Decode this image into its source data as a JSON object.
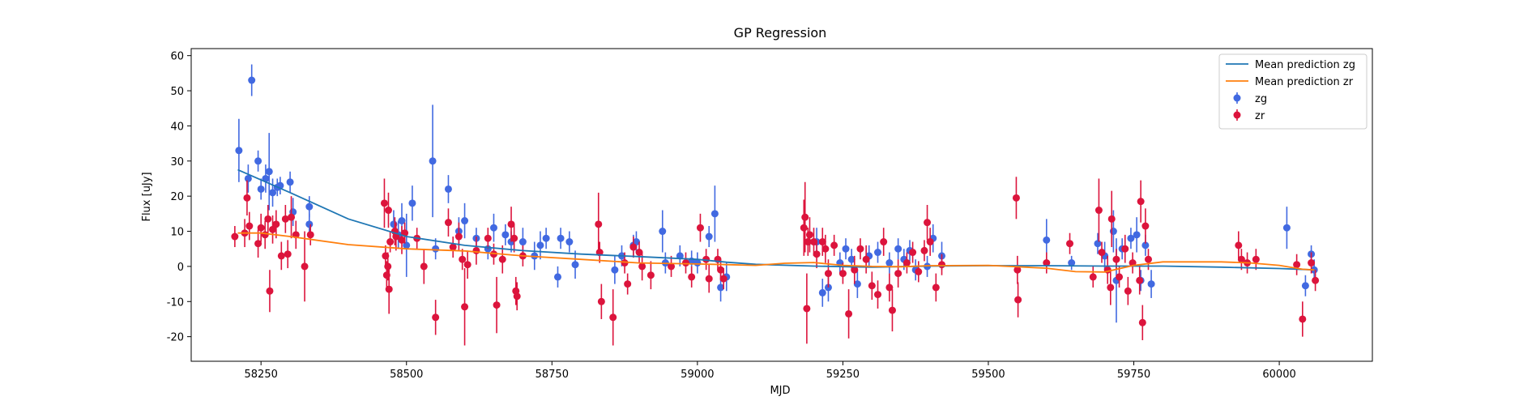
{
  "chart_data": {
    "type": "scatter",
    "title": "GP Regression",
    "xlabel": "MJD",
    "ylabel": "Flux [uJy]",
    "xlim": [
      58130,
      60160
    ],
    "ylim": [
      -27,
      62
    ],
    "xticks": [
      58250,
      58500,
      58750,
      59000,
      59250,
      59500,
      59750,
      60000
    ],
    "yticks": [
      -20,
      -10,
      0,
      10,
      20,
      30,
      40,
      50,
      60
    ],
    "grid": false,
    "legend_position": "top-right",
    "series": [
      {
        "name": "Mean prediction zg",
        "kind": "line",
        "color": "#1f77b4",
        "points": [
          [
            58210,
            27.5
          ],
          [
            58300,
            21
          ],
          [
            58400,
            13.5
          ],
          [
            58500,
            8.5
          ],
          [
            58600,
            6
          ],
          [
            58700,
            4.5
          ],
          [
            58800,
            3.5
          ],
          [
            58900,
            2.8
          ],
          [
            59000,
            2
          ],
          [
            59050,
            1.2
          ],
          [
            59100,
            0.6
          ],
          [
            59200,
            0.1
          ],
          [
            59300,
            -0.2
          ],
          [
            59400,
            0.1
          ],
          [
            59500,
            0.2
          ],
          [
            59600,
            0.2
          ],
          [
            59700,
            0.1
          ],
          [
            59800,
            0.1
          ],
          [
            59900,
            -0.2
          ],
          [
            60000,
            -0.6
          ],
          [
            60060,
            -1
          ]
        ]
      },
      {
        "name": "Mean prediction zr",
        "kind": "line",
        "color": "#ff7f0e",
        "points": [
          [
            58210,
            9.5
          ],
          [
            58250,
            9.5
          ],
          [
            58300,
            8.5
          ],
          [
            58400,
            6.2
          ],
          [
            58500,
            5
          ],
          [
            58600,
            4.4
          ],
          [
            58700,
            3
          ],
          [
            58800,
            2
          ],
          [
            58900,
            1
          ],
          [
            59000,
            0.7
          ],
          [
            59050,
            0.5
          ],
          [
            59100,
            0.3
          ],
          [
            59150,
            0.9
          ],
          [
            59200,
            1.1
          ],
          [
            59250,
            0.3
          ],
          [
            59300,
            0
          ],
          [
            59350,
            -0.1
          ],
          [
            59400,
            0.2
          ],
          [
            59500,
            0.3
          ],
          [
            59600,
            -0.5
          ],
          [
            59650,
            -1.5
          ],
          [
            59700,
            -1.6
          ],
          [
            59750,
            0.3
          ],
          [
            59800,
            1.3
          ],
          [
            59900,
            1.3
          ],
          [
            59950,
            1
          ],
          [
            60000,
            0.3
          ],
          [
            60040,
            -0.8
          ],
          [
            60060,
            -1
          ]
        ]
      },
      {
        "name": "zg",
        "kind": "errorbar",
        "color": "#4169e1",
        "points": [
          [
            58212,
            33,
            9
          ],
          [
            58228,
            25,
            4
          ],
          [
            58234,
            53,
            4.5
          ],
          [
            58245,
            30,
            3
          ],
          [
            58250,
            22,
            3
          ],
          [
            58258,
            25,
            4
          ],
          [
            58264,
            27,
            11
          ],
          [
            58270,
            21,
            4
          ],
          [
            58278,
            22.5,
            2.5
          ],
          [
            58283,
            23,
            2.5
          ],
          [
            58300,
            24,
            3
          ],
          [
            58305,
            15.5,
            4
          ],
          [
            58333,
            17,
            3
          ],
          [
            58333,
            12,
            3
          ],
          [
            58478,
            12,
            4
          ],
          [
            58486,
            9,
            4
          ],
          [
            58492,
            13,
            5
          ],
          [
            58500,
            6,
            9
          ],
          [
            58510,
            18,
            5
          ],
          [
            58545,
            30,
            16
          ],
          [
            58550,
            5,
            3
          ],
          [
            58572,
            22,
            4
          ],
          [
            58590,
            10,
            4
          ],
          [
            58600,
            13,
            5
          ],
          [
            58620,
            8,
            3
          ],
          [
            58640,
            5,
            3
          ],
          [
            58650,
            11,
            4
          ],
          [
            58670,
            9,
            3
          ],
          [
            58680,
            7,
            3
          ],
          [
            58700,
            7,
            4
          ],
          [
            58720,
            3,
            4
          ],
          [
            58730,
            6,
            4
          ],
          [
            58740,
            8,
            3
          ],
          [
            58760,
            -3,
            3
          ],
          [
            58765,
            8,
            3
          ],
          [
            58780,
            7,
            3
          ],
          [
            58790,
            0.5,
            4
          ],
          [
            58858,
            -1,
            4
          ],
          [
            58870,
            3,
            3
          ],
          [
            58890,
            6,
            3
          ],
          [
            58895,
            7,
            3
          ],
          [
            58940,
            10,
            6
          ],
          [
            58945,
            1,
            3
          ],
          [
            58970,
            3,
            3
          ],
          [
            58990,
            1.5,
            3
          ],
          [
            59000,
            1,
            3
          ],
          [
            59020,
            8.5,
            3
          ],
          [
            59030,
            15,
            8
          ],
          [
            59040,
            -6,
            4
          ],
          [
            59050,
            -3,
            4
          ],
          [
            59205,
            7,
            4
          ],
          [
            59215,
            -7.5,
            4
          ],
          [
            59225,
            -6,
            4
          ],
          [
            59245,
            1,
            3
          ],
          [
            59255,
            5,
            3
          ],
          [
            59265,
            2,
            3
          ],
          [
            59275,
            -5,
            4
          ],
          [
            59295,
            3,
            3
          ],
          [
            59310,
            4,
            3
          ],
          [
            59330,
            1,
            3
          ],
          [
            59345,
            5,
            3
          ],
          [
            59355,
            2,
            3
          ],
          [
            59365,
            4.5,
            3
          ],
          [
            59375,
            -1,
            3
          ],
          [
            59395,
            0,
            3
          ],
          [
            59405,
            8,
            4
          ],
          [
            59420,
            3,
            4
          ],
          [
            59600,
            7.5,
            6
          ],
          [
            59643,
            1,
            2
          ],
          [
            59688,
            6.5,
            3
          ],
          [
            59700,
            3,
            4
          ],
          [
            59715,
            10,
            6
          ],
          [
            59720,
            -4,
            12
          ],
          [
            59730,
            5,
            3
          ],
          [
            59745,
            8,
            3
          ],
          [
            59755,
            9,
            5
          ],
          [
            59762,
            -4,
            3
          ],
          [
            59770,
            6,
            3
          ],
          [
            59780,
            -5,
            4
          ],
          [
            60013,
            11,
            6
          ],
          [
            60045,
            -5.5,
            3
          ],
          [
            60055,
            3.5,
            2.5
          ],
          [
            60060,
            -1,
            3
          ]
        ]
      },
      {
        "name": "zr",
        "kind": "errorbar",
        "color": "#dc143c",
        "points": [
          [
            58205,
            8.5,
            3
          ],
          [
            58222,
            9.5,
            4
          ],
          [
            58226,
            19.5,
            5
          ],
          [
            58230,
            11.5,
            4
          ],
          [
            58245,
            6.5,
            4
          ],
          [
            58250,
            11,
            4
          ],
          [
            58257,
            9,
            4
          ],
          [
            58262,
            13.5,
            4
          ],
          [
            58265,
            -7,
            6
          ],
          [
            58270,
            10.5,
            4
          ],
          [
            58276,
            12,
            4
          ],
          [
            58285,
            3,
            4
          ],
          [
            58292,
            13.5,
            4
          ],
          [
            58296,
            3.5,
            4
          ],
          [
            58302,
            14,
            6
          ],
          [
            58310,
            9,
            4
          ],
          [
            58325,
            0,
            10
          ],
          [
            58335,
            9,
            3
          ],
          [
            58462,
            18,
            7
          ],
          [
            58464,
            3,
            3
          ],
          [
            58466,
            -2.5,
            4
          ],
          [
            58468,
            0,
            4
          ],
          [
            58469,
            16,
            5
          ],
          [
            58470,
            -6.5,
            7
          ],
          [
            58472,
            7,
            3
          ],
          [
            58480,
            10,
            4
          ],
          [
            58482,
            8.5,
            4
          ],
          [
            58492,
            7.5,
            4
          ],
          [
            58497,
            9.5,
            3
          ],
          [
            58518,
            8,
            3
          ],
          [
            58530,
            0,
            5
          ],
          [
            58550,
            -14.5,
            5
          ],
          [
            58572,
            12.5,
            4
          ],
          [
            58580,
            5.5,
            3
          ],
          [
            58590,
            8.5,
            4
          ],
          [
            58596,
            2,
            3
          ],
          [
            58600,
            -11.5,
            11
          ],
          [
            58605,
            0.5,
            4
          ],
          [
            58620,
            4.5,
            4
          ],
          [
            58640,
            8,
            3
          ],
          [
            58650,
            3.5,
            3
          ],
          [
            58655,
            -11,
            8
          ],
          [
            58665,
            2,
            4
          ],
          [
            58680,
            12,
            5
          ],
          [
            58685,
            8,
            4
          ],
          [
            58688,
            -7,
            4
          ],
          [
            58690,
            -8.5,
            4
          ],
          [
            58700,
            3,
            3
          ],
          [
            58830,
            12,
            9
          ],
          [
            58832,
            4,
            3
          ],
          [
            58835,
            -10,
            5
          ],
          [
            58855,
            -14.5,
            8
          ],
          [
            58875,
            1,
            3
          ],
          [
            58880,
            -5,
            3
          ],
          [
            58890,
            5.5,
            3
          ],
          [
            58900,
            4,
            3
          ],
          [
            58905,
            0,
            4
          ],
          [
            58920,
            -2.5,
            4
          ],
          [
            58955,
            0,
            3
          ],
          [
            58980,
            1,
            3
          ],
          [
            58990,
            -3,
            3
          ],
          [
            59005,
            11,
            4
          ],
          [
            59015,
            2,
            3
          ],
          [
            59020,
            -3.5,
            4
          ],
          [
            59035,
            2,
            3
          ],
          [
            59040,
            -1,
            3
          ],
          [
            59045,
            -3.5,
            3
          ],
          [
            59183,
            11,
            8
          ],
          [
            59185,
            14,
            10
          ],
          [
            59188,
            -12,
            10
          ],
          [
            59190,
            7,
            4
          ],
          [
            59193,
            9,
            5
          ],
          [
            59200,
            7,
            4
          ],
          [
            59205,
            3.5,
            4
          ],
          [
            59215,
            7,
            4
          ],
          [
            59220,
            5,
            4
          ],
          [
            59225,
            -2,
            4
          ],
          [
            59235,
            6,
            3
          ],
          [
            59250,
            -2,
            3
          ],
          [
            59260,
            -13.5,
            7
          ],
          [
            59270,
            -1,
            4
          ],
          [
            59280,
            5,
            3
          ],
          [
            59290,
            2,
            4
          ],
          [
            59300,
            -5.5,
            4
          ],
          [
            59310,
            -8,
            4
          ],
          [
            59320,
            7,
            4
          ],
          [
            59330,
            -6,
            4
          ],
          [
            59335,
            -12.5,
            6
          ],
          [
            59345,
            -2,
            4
          ],
          [
            59360,
            1,
            3
          ],
          [
            59370,
            4,
            3
          ],
          [
            59380,
            -1.5,
            3
          ],
          [
            59390,
            4.5,
            3
          ],
          [
            59395,
            12.5,
            5
          ],
          [
            59400,
            7,
            4
          ],
          [
            59410,
            -6,
            4
          ],
          [
            59420,
            0.5,
            3
          ],
          [
            59548,
            19.5,
            6
          ],
          [
            59550,
            -1,
            4
          ],
          [
            59551,
            -9.5,
            5
          ],
          [
            59600,
            1,
            3
          ],
          [
            59640,
            6.5,
            3
          ],
          [
            59680,
            -3,
            3
          ],
          [
            59690,
            16,
            9
          ],
          [
            59695,
            4,
            3
          ],
          [
            59705,
            -1,
            4
          ],
          [
            59710,
            -6,
            5
          ],
          [
            59712,
            13.5,
            8
          ],
          [
            59720,
            2,
            3
          ],
          [
            59725,
            -3,
            3
          ],
          [
            59735,
            5,
            4
          ],
          [
            59740,
            -7,
            4
          ],
          [
            59748,
            1,
            3
          ],
          [
            59760,
            -4,
            4
          ],
          [
            59762,
            18.5,
            6
          ],
          [
            59765,
            -16,
            5
          ],
          [
            59770,
            11.5,
            5
          ],
          [
            59775,
            2,
            3
          ],
          [
            59930,
            6,
            4
          ],
          [
            59935,
            2,
            3
          ],
          [
            59945,
            1,
            3
          ],
          [
            59960,
            2,
            3
          ],
          [
            60030,
            0.5,
            3
          ],
          [
            60040,
            -15,
            5
          ],
          [
            60055,
            1,
            3
          ],
          [
            60062,
            -4,
            3
          ]
        ]
      }
    ]
  }
}
